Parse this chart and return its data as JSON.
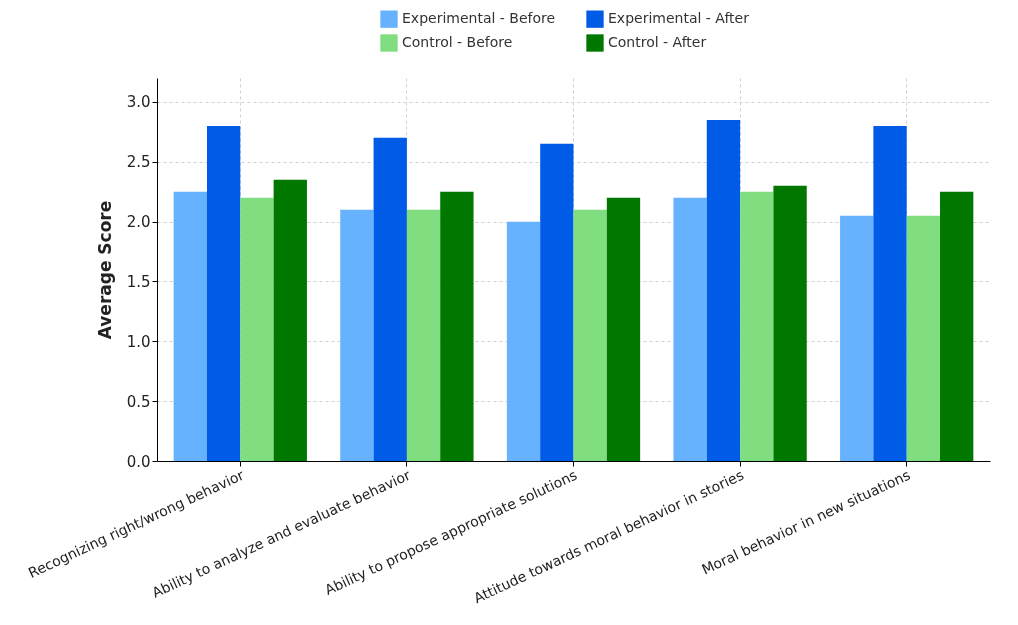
{
  "chart_data": {
    "type": "bar",
    "ylabel": "Average Score",
    "categories": [
      "Recognizing right/wrong behavior",
      "Ability to analyze and evaluate behavior",
      "Ability to propose appropriate solutions",
      "Attitude towards moral behavior in stories",
      "Moral behavior in new situations"
    ],
    "series": [
      {
        "name": "Experimental - Before",
        "color": "#66b2ff",
        "values": [
          2.25,
          2.1,
          2.0,
          2.2,
          2.05
        ]
      },
      {
        "name": "Experimental - After",
        "color": "#005ce6",
        "values": [
          2.8,
          2.7,
          2.65,
          2.85,
          2.8
        ]
      },
      {
        "name": "Control - Before",
        "color": "#80de80",
        "values": [
          2.2,
          2.1,
          2.1,
          2.25,
          2.05
        ]
      },
      {
        "name": "Control - After",
        "color": "#007800",
        "values": [
          2.35,
          2.25,
          2.2,
          2.3,
          2.25
        ]
      }
    ],
    "ylim": [
      0,
      3.2
    ],
    "yticks": [
      {
        "value": 0,
        "label": "0.0"
      },
      0.5,
      {
        "value": 1,
        "label": "1.0"
      },
      1.5,
      {
        "value": 2,
        "label": "2.0"
      },
      2.5,
      {
        "value": 3,
        "label": "3.0"
      }
    ],
    "grid": true,
    "legend": "top"
  }
}
